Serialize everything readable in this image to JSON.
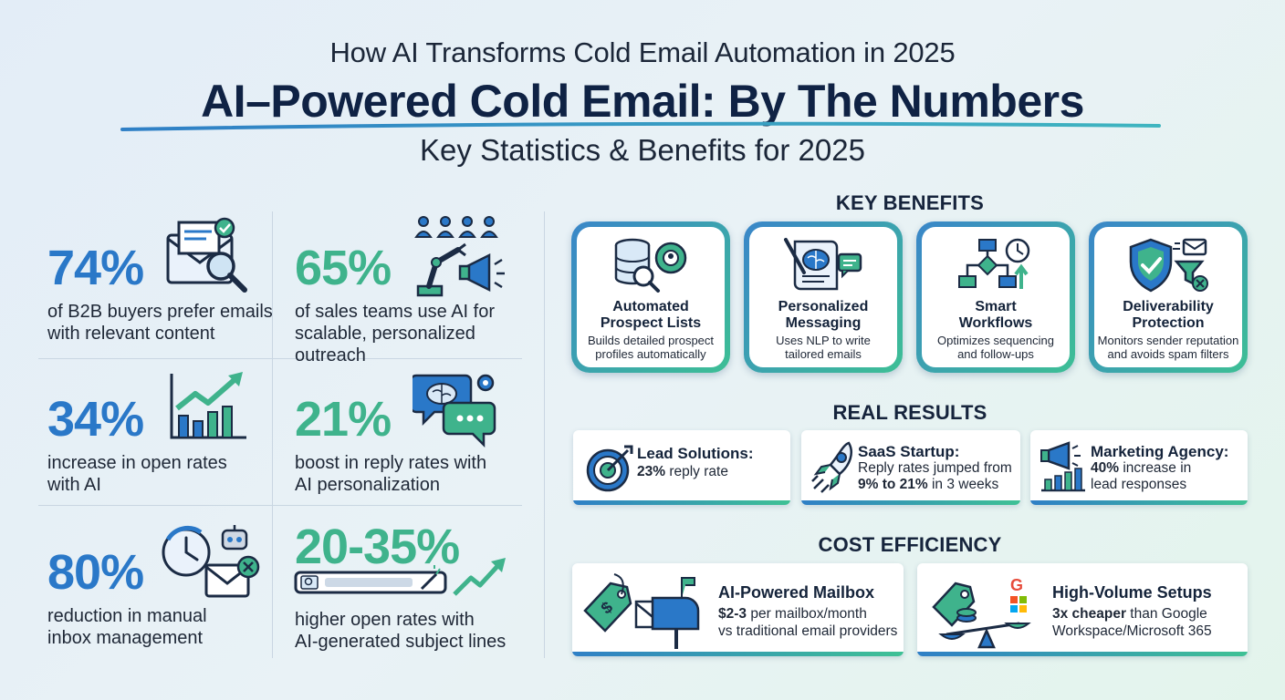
{
  "header": {
    "kicker": "How AI Transforms Cold Email Automation in 2025",
    "title": "AI–Powered Cold Email: By The Numbers",
    "subtitle": "Key Statistics & Benefits for 2025"
  },
  "stats": [
    {
      "value": "74%",
      "desc_line1": "of B2B buyers prefer emails",
      "desc_line2": "with relevant content",
      "icon": "email-search-icon"
    },
    {
      "value": "65%",
      "desc_line1": "of sales teams use AI for",
      "desc_line2": "scalable, personalized outreach",
      "icon": "robot-arm-megaphone-icon"
    },
    {
      "value": "34%",
      "desc_line1": "increase in open rates",
      "desc_line2": "with AI",
      "icon": "bar-chart-growth-icon"
    },
    {
      "value": "21%",
      "desc_line1": "boost in reply rates with",
      "desc_line2": "AI personalization",
      "icon": "chat-brain-icon"
    },
    {
      "value": "80%",
      "desc_line1": "reduction in manual",
      "desc_line2": "inbox management",
      "icon": "clock-robot-email-icon"
    },
    {
      "value": "20-35%",
      "desc_line1": "higher open rates with",
      "desc_line2": "AI-generated subject lines",
      "icon": "subject-line-search-icon"
    }
  ],
  "benefits": {
    "heading": "KEY BENEFITS",
    "items": [
      {
        "title_line1": "Automated",
        "title_line2": "Prospect Lists",
        "desc_line1": "Builds detailed prospect",
        "desc_line2": "profiles automatically",
        "icon": "database-search-icon"
      },
      {
        "title_line1": "Personalized",
        "title_line2": "Messaging",
        "desc_line1": "Uses NLP to write",
        "desc_line2": "tailored emails",
        "icon": "brain-document-icon"
      },
      {
        "title_line1": "Smart",
        "title_line2": "Workflows",
        "desc_line1": "Optimizes sequencing",
        "desc_line2": "and follow-ups",
        "icon": "workflow-icon"
      },
      {
        "title_line1": "Deliverability",
        "title_line2": "Protection",
        "desc_line1": "Monitors sender reputation",
        "desc_line2": "and avoids spam filters",
        "icon": "shield-check-icon"
      }
    ]
  },
  "results": {
    "heading": "REAL RESULTS",
    "items": [
      {
        "title": "Lead Solutions:",
        "bold1": "23%",
        "text1": " reply rate",
        "icon": "target-icon"
      },
      {
        "title": "SaaS Startup:",
        "line1": "Reply rates jumped from",
        "bold2": "9% to 21%",
        "text2": " in 3 weeks",
        "icon": "rocket-icon"
      },
      {
        "title": "Marketing Agency:",
        "bold1": "40%",
        "text1": " increase in",
        "line2": "lead responses",
        "icon": "megaphone-chart-icon"
      }
    ]
  },
  "cost": {
    "heading": "COST EFFICIENCY",
    "items": [
      {
        "title": "AI-Powered Mailbox",
        "bold1": "$2-3",
        "text1": " per mailbox/month",
        "line2": "vs traditional email providers",
        "icon": "price-tag-mailbox-icon"
      },
      {
        "title": "High-Volume Setups",
        "bold1": "3x cheaper",
        "text1": " than Google",
        "line2": "Workspace/Microsoft 365",
        "icon": "scale-coins-icon"
      }
    ]
  },
  "colors": {
    "blue": "#2a78c8",
    "green": "#3fb38c",
    "navy": "#0f2244",
    "accent_gradient": [
      "#2f7fc6",
      "#3fc195"
    ]
  }
}
